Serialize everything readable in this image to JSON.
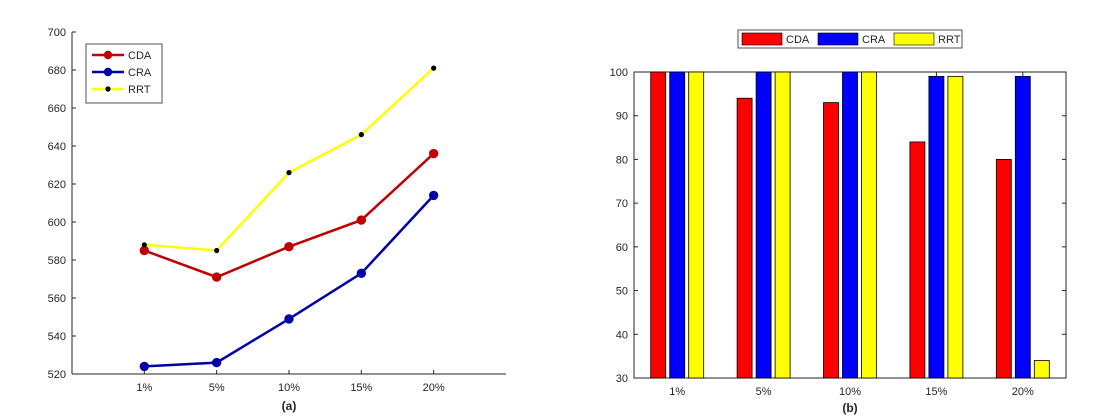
{
  "chart_data": [
    {
      "type": "line",
      "subplot_label": "(a)",
      "categories": [
        "1%",
        "5%",
        "10%",
        "15%",
        "20%"
      ],
      "ylim": [
        520,
        700
      ],
      "yticks": [
        520,
        540,
        560,
        580,
        600,
        620,
        640,
        660,
        680,
        700
      ],
      "grid": false,
      "legend_position": "top-left",
      "series": [
        {
          "name": "CDA",
          "color": "#c00000",
          "marker": "circle-filled",
          "values": [
            585,
            571,
            587,
            601,
            636
          ]
        },
        {
          "name": "CRA",
          "color": "#0000a8",
          "marker": "circle-filled",
          "values": [
            524,
            526,
            549,
            573,
            614
          ]
        },
        {
          "name": "RRT",
          "color": "#ffff00",
          "marker": "dot-black",
          "values": [
            588,
            585,
            626,
            646,
            681
          ]
        }
      ]
    },
    {
      "type": "bar",
      "subplot_label": "(b)",
      "categories": [
        "1%",
        "5%",
        "10%",
        "15%",
        "20%"
      ],
      "ylim": [
        30,
        100
      ],
      "yticks": [
        30,
        40,
        50,
        60,
        70,
        80,
        90,
        100
      ],
      "grid": false,
      "legend_position": "top-center",
      "series": [
        {
          "name": "CDA",
          "color": "#ff0000",
          "values": [
            100,
            94,
            93,
            84,
            80
          ]
        },
        {
          "name": "CRA",
          "color": "#0000ff",
          "values": [
            100,
            100,
            100,
            99,
            99
          ]
        },
        {
          "name": "RRT",
          "color": "#ffff00",
          "values": [
            100,
            100,
            100,
            99,
            34
          ]
        }
      ]
    }
  ]
}
